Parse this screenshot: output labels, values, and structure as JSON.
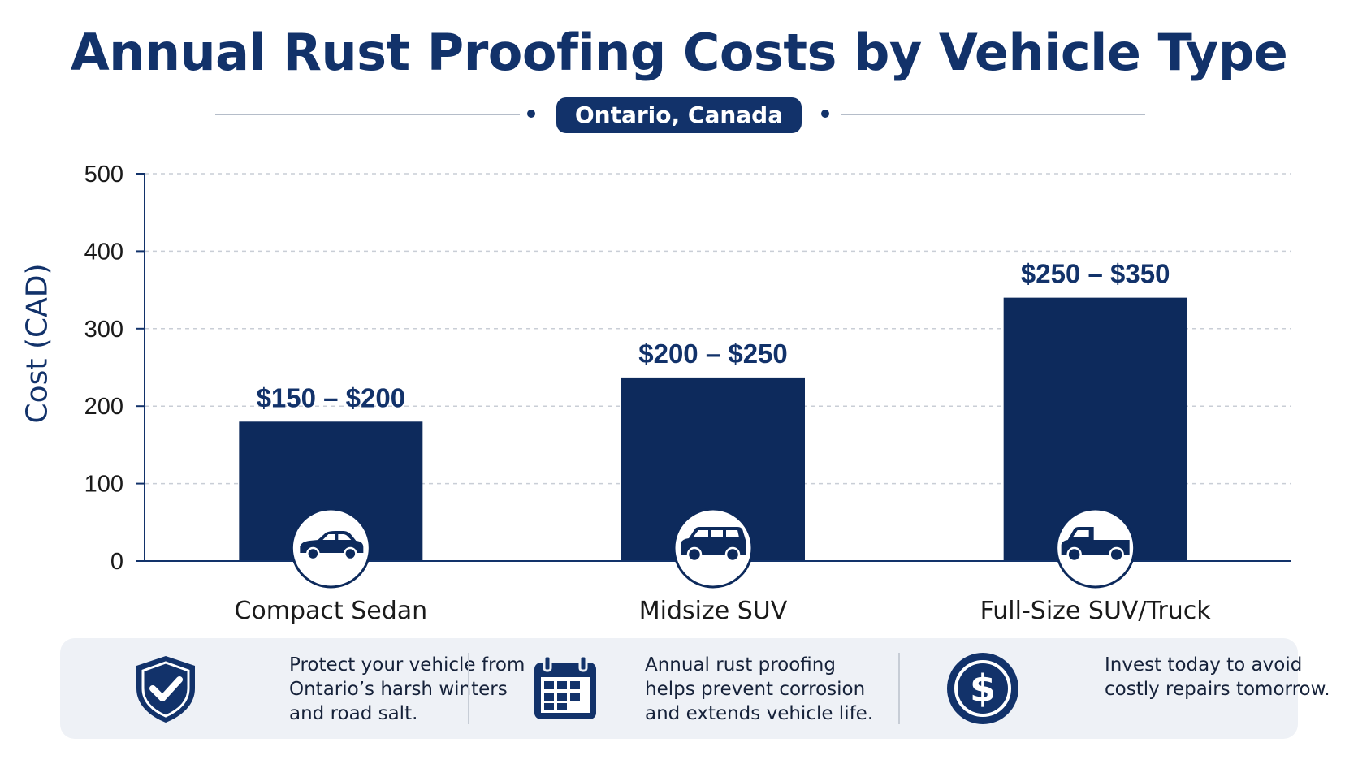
{
  "header": {
    "title": "Annual Rust Proofing Costs by Vehicle Type",
    "subtitle": "Ontario, Canada"
  },
  "colors": {
    "bar": "#0d2a5c",
    "title": "#12326a",
    "grid": "#c9ced6",
    "panel": "#eef1f6"
  },
  "chart_data": {
    "type": "bar",
    "ylabel": "Cost (CAD)",
    "xlabel": "",
    "ylim": [
      0,
      500
    ],
    "yticks": [
      0,
      100,
      200,
      300,
      400,
      500
    ],
    "grid": true,
    "categories": [
      "Compact Sedan",
      "Midsize SUV",
      "Full-Size SUV/Truck"
    ],
    "values": [
      180,
      237,
      340
    ],
    "data_labels": [
      "$150 – $200",
      "$200 – $250",
      "$250 – $350"
    ],
    "category_icons": [
      "sedan-icon",
      "suv-icon",
      "pickup-truck-icon"
    ]
  },
  "info": [
    {
      "icon": "shield-check-icon",
      "text": "Protect your vehicle from Ontario’s harsh winters and road salt."
    },
    {
      "icon": "calendar-icon",
      "text": "Annual rust proofing helps prevent corrosion and extends vehicle life."
    },
    {
      "icon": "dollar-icon",
      "text": "Invest today to avoid costly repairs tomorrow."
    }
  ]
}
